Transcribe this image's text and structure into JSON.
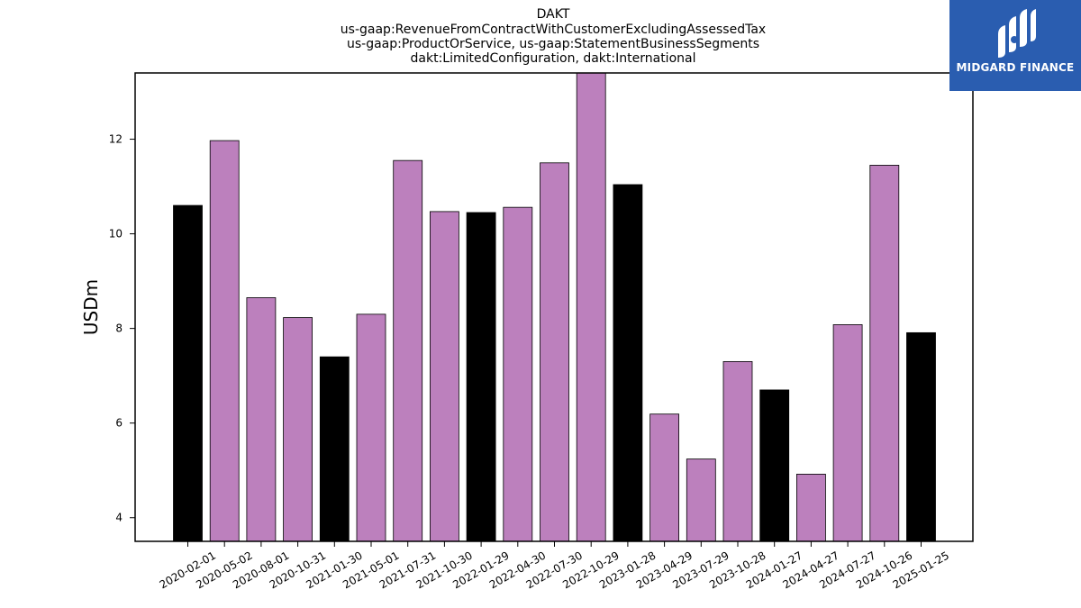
{
  "chart_data": {
    "type": "bar",
    "title_lines": [
      "DAKT",
      "us-gaap:RevenueFromContractWithCustomerExcludingAssessedTax",
      "us-gaap:ProductOrService, us-gaap:StatementBusinessSegments",
      "dakt:LimitedConfiguration, dakt:International"
    ],
    "xlabel": "",
    "ylabel": "USDm",
    "ylim": [
      3.5,
      13.4
    ],
    "yticks": [
      4,
      6,
      8,
      10,
      12
    ],
    "grid": false,
    "categories": [
      "2020-02-01",
      "2020-05-02",
      "2020-08-01",
      "2020-10-31",
      "2021-01-30",
      "2021-05-01",
      "2021-07-31",
      "2021-10-30",
      "2022-01-29",
      "2022-04-30",
      "2022-07-30",
      "2022-10-29",
      "2023-01-28",
      "2023-04-29",
      "2023-07-29",
      "2023-10-28",
      "2024-01-27",
      "2024-04-27",
      "2024-07-27",
      "2024-10-26",
      "2025-01-25"
    ],
    "values": [
      10.6,
      11.97,
      8.65,
      8.23,
      7.4,
      8.3,
      11.55,
      10.47,
      10.45,
      10.56,
      11.5,
      13.4,
      11.04,
      6.19,
      5.24,
      7.3,
      6.7,
      4.92,
      8.08,
      11.45,
      7.91
    ],
    "bar_colors": [
      "#000000",
      "#bc80bd",
      "#bc80bd",
      "#bc80bd",
      "#000000",
      "#bc80bd",
      "#bc80bd",
      "#bc80bd",
      "#000000",
      "#bc80bd",
      "#bc80bd",
      "#bc80bd",
      "#000000",
      "#bc80bd",
      "#bc80bd",
      "#bc80bd",
      "#000000",
      "#bc80bd",
      "#bc80bd",
      "#bc80bd",
      "#000000"
    ]
  },
  "logo": {
    "text": "MIDGARD FINANCE",
    "background": "#2a5db0"
  }
}
